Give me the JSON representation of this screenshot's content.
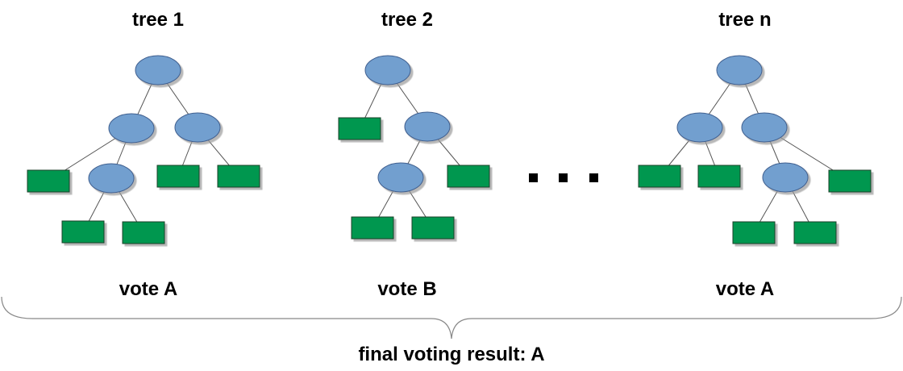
{
  "colors": {
    "internal_node": "#729fcf",
    "leaf_node": "#00974f",
    "edge": "#555555",
    "shadow": "#b5b5b5"
  },
  "trees": [
    {
      "title": "tree 1",
      "vote": "vote A"
    },
    {
      "title": "tree 2",
      "vote": "vote B"
    },
    {
      "title": "tree n",
      "vote": "vote A"
    }
  ],
  "ellipsis_icon": "ellipsis-dots",
  "final_result": "final voting result: A"
}
